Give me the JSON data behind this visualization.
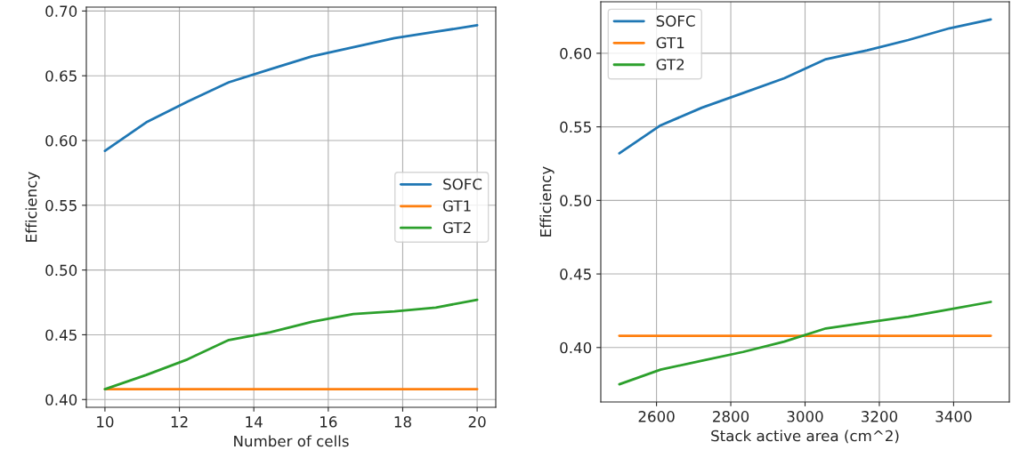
{
  "chart_data": [
    {
      "type": "line",
      "xlabel": "Number of cells",
      "ylabel": "Efficiency",
      "x": [
        10,
        11.11,
        12.22,
        13.33,
        14.44,
        15.56,
        16.67,
        17.78,
        18.89,
        20
      ],
      "series": [
        {
          "name": "SOFC",
          "color": "#1f77b4",
          "values": [
            0.592,
            0.614,
            0.63,
            0.645,
            0.655,
            0.665,
            0.672,
            0.679,
            0.684,
            0.689
          ]
        },
        {
          "name": "GT1",
          "color": "#ff7f0e",
          "values": [
            0.408,
            0.408,
            0.408,
            0.408,
            0.408,
            0.408,
            0.408,
            0.408,
            0.408,
            0.408
          ]
        },
        {
          "name": "GT2",
          "color": "#2ca02c",
          "values": [
            0.408,
            0.419,
            0.431,
            0.446,
            0.452,
            0.46,
            0.466,
            0.468,
            0.471,
            0.477
          ]
        }
      ],
      "xlim": [
        9.5,
        20.5
      ],
      "xticks": [
        10,
        12,
        14,
        16,
        18,
        20
      ],
      "ylim": [
        0.394,
        0.703
      ],
      "yticks": [
        {
          "value": 0.4,
          "label": "0.40"
        },
        {
          "value": 0.45,
          "label": "0.45"
        },
        {
          "value": 0.5,
          "label": "0.50"
        },
        {
          "value": 0.55,
          "label": "0.55"
        },
        {
          "value": 0.6,
          "label": "0.60"
        },
        {
          "value": 0.65,
          "label": "0.65"
        },
        {
          "value": 0.7,
          "label": "0.70"
        }
      ],
      "grid": true,
      "legend": "center right"
    },
    {
      "type": "line",
      "xlabel": "Stack active area (cm^2)",
      "ylabel": "Efficiency",
      "x": [
        2500,
        2611,
        2722,
        2833,
        2944,
        3056,
        3167,
        3278,
        3389,
        3500
      ],
      "series": [
        {
          "name": "SOFC",
          "color": "#1f77b4",
          "values": [
            0.532,
            0.551,
            0.563,
            0.573,
            0.583,
            0.596,
            0.602,
            0.609,
            0.617,
            0.623
          ]
        },
        {
          "name": "GT1",
          "color": "#ff7f0e",
          "values": [
            0.408,
            0.408,
            0.408,
            0.408,
            0.408,
            0.408,
            0.408,
            0.408,
            0.408,
            0.408
          ]
        },
        {
          "name": "GT2",
          "color": "#2ca02c",
          "values": [
            0.375,
            0.385,
            0.391,
            0.397,
            0.404,
            0.413,
            0.417,
            0.421,
            0.426,
            0.431
          ]
        }
      ],
      "xlim": [
        2450,
        3550
      ],
      "xticks": [
        2600,
        2800,
        3000,
        3200,
        3400
      ],
      "ylim": [
        0.363,
        0.635
      ],
      "yticks": [
        {
          "value": 0.4,
          "label": "0.40"
        },
        {
          "value": 0.45,
          "label": "0.45"
        },
        {
          "value": 0.5,
          "label": "0.50"
        },
        {
          "value": 0.55,
          "label": "0.55"
        },
        {
          "value": 0.6,
          "label": "0.60"
        }
      ],
      "grid": true,
      "legend": "top left"
    }
  ]
}
